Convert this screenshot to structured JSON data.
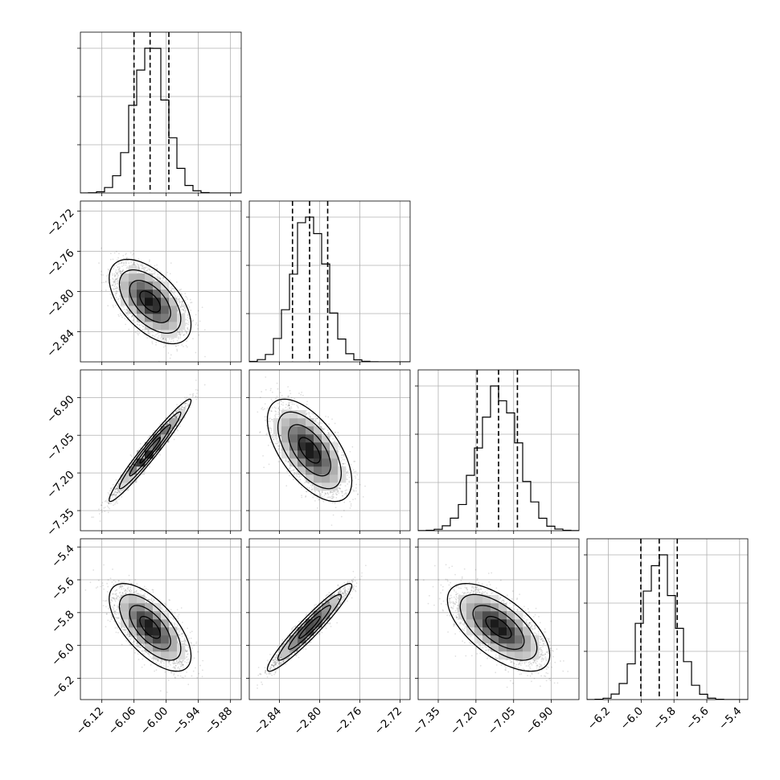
{
  "chart_data": {
    "type": "corner",
    "grid": true,
    "parameters": [
      {
        "center": -6.03,
        "sigma": 0.03,
        "quantiles": [
          -6.06,
          -6.03,
          -5.995
        ],
        "range": [
          -6.16,
          -5.86
        ],
        "ticks": [
          "−6.12",
          "−6.06",
          "−6.00",
          "−5.94",
          "−5.88"
        ]
      },
      {
        "center": -2.81,
        "sigma": 0.0165,
        "quantiles": [
          -2.827,
          -2.81,
          -2.792
        ],
        "range": [
          -2.87,
          -2.71
        ],
        "ticks": [
          "−2.84",
          "−2.80",
          "−2.76",
          "−2.72"
        ]
      },
      {
        "center": -7.11,
        "sigma": 0.08,
        "quantiles": [
          -7.195,
          -7.11,
          -7.035
        ],
        "range": [
          -7.43,
          -6.79
        ],
        "ticks": [
          "−7.35",
          "−7.20",
          "−7.05",
          "−6.90"
        ]
      },
      {
        "center": -5.89,
        "sigma": 0.105,
        "quantiles": [
          -6.002,
          -5.89,
          -5.78
        ],
        "range": [
          -6.33,
          -5.35
        ],
        "ticks": [
          "−6.2",
          "−6.0",
          "−5.8",
          "−5.6",
          "−5.4"
        ]
      }
    ],
    "correlations": {
      "1-0": -0.55,
      "2-0": 0.97,
      "2-1": -0.6,
      "3-0": -0.65,
      "3-1": 0.95,
      "3-2": -0.63
    },
    "contour_levels_sigma": [
      0.5,
      1,
      1.5,
      2
    ],
    "hist_bins": 20,
    "samples": 4000
  }
}
